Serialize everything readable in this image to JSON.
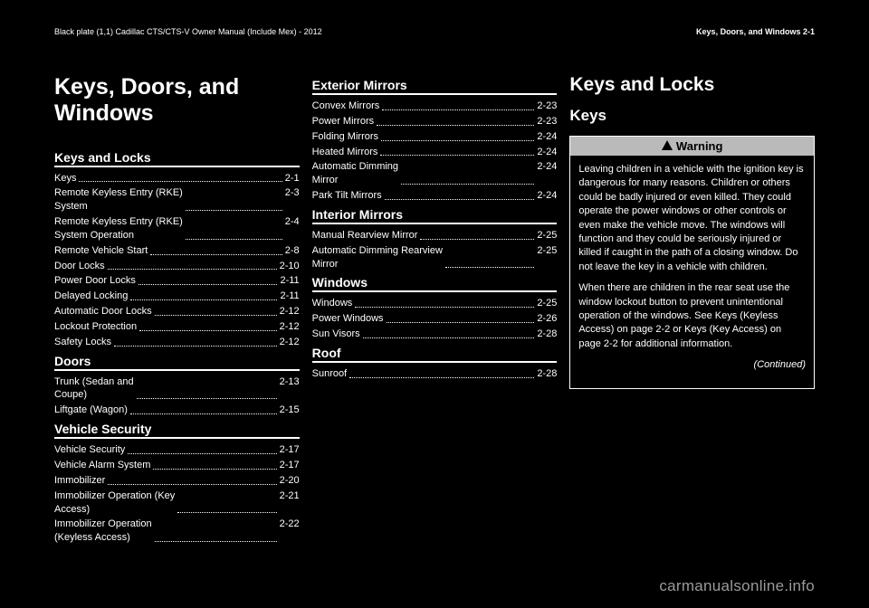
{
  "header": {
    "left": "Black plate (1,1) Cadillac CTS/CTS-V Owner Manual (Include Mex) - 2012",
    "right": "Keys, Doors, and Windows   2-1"
  },
  "col1": {
    "chapter_title": "Keys, Doors, and Windows",
    "sections": [
      {
        "title": "Keys and Locks",
        "items": [
          {
            "label": "Keys",
            "page": "2-1"
          },
          {
            "label": "Remote Keyless Entry (RKE) System",
            "page": "2-3"
          },
          {
            "label": "Remote Keyless Entry (RKE) System Operation",
            "page": "2-4"
          },
          {
            "label": "Remote Vehicle Start",
            "page": "2-8"
          },
          {
            "label": "Door Locks",
            "page": "2-10"
          },
          {
            "label": "Power Door Locks",
            "page": "2-11"
          },
          {
            "label": "Delayed Locking",
            "page": "2-11"
          },
          {
            "label": "Automatic Door Locks",
            "page": "2-12"
          },
          {
            "label": "Lockout Protection",
            "page": "2-12"
          },
          {
            "label": "Safety Locks",
            "page": "2-12"
          }
        ]
      },
      {
        "title": "Doors",
        "items": [
          {
            "label": "Trunk (Sedan and Coupe)",
            "page": "2-13"
          },
          {
            "label": "Liftgate (Wagon)",
            "page": "2-15"
          }
        ]
      },
      {
        "title": "Vehicle Security",
        "items": [
          {
            "label": "Vehicle Security",
            "page": "2-17"
          },
          {
            "label": "Vehicle Alarm System",
            "page": "2-17"
          },
          {
            "label": "Immobilizer",
            "page": "2-20"
          },
          {
            "label": "Immobilizer Operation (Key Access)",
            "page": "2-21"
          },
          {
            "label": "Immobilizer Operation (Keyless Access)",
            "page": "2-22"
          }
        ]
      }
    ]
  },
  "col2": {
    "sections": [
      {
        "title": "Exterior Mirrors",
        "items": [
          {
            "label": "Convex Mirrors",
            "page": "2-23"
          },
          {
            "label": "Power Mirrors",
            "page": "2-23"
          },
          {
            "label": "Folding Mirrors",
            "page": "2-24"
          },
          {
            "label": "Heated Mirrors",
            "page": "2-24"
          },
          {
            "label": "Automatic Dimming Mirror",
            "page": "2-24"
          },
          {
            "label": "Park Tilt Mirrors",
            "page": "2-24"
          }
        ]
      },
      {
        "title": "Interior Mirrors",
        "items": [
          {
            "label": "Manual Rearview Mirror",
            "page": "2-25"
          },
          {
            "label": "Automatic Dimming Rearview Mirror",
            "page": "2-25"
          }
        ]
      },
      {
        "title": "Windows",
        "items": [
          {
            "label": "Windows",
            "page": "2-25"
          },
          {
            "label": "Power Windows",
            "page": "2-26"
          },
          {
            "label": "Sun Visors",
            "page": "2-28"
          }
        ]
      },
      {
        "title": "Roof",
        "items": [
          {
            "label": "Sunroof",
            "page": "2-28"
          }
        ]
      }
    ]
  },
  "col3": {
    "h1": "Keys and Locks",
    "h2": "Keys",
    "warning": {
      "label": "Warning",
      "p1": "Leaving children in a vehicle with the ignition key is dangerous for many reasons. Children or others could be badly injured or even killed. They could operate the power windows or other controls or even make the vehicle move. The windows will function and they could be seriously injured or killed if caught in the path of a closing window. Do not leave the key in a vehicle with children.",
      "p2": "When there are children in the rear seat use the window lockout button to prevent unintentional operation of the windows. See Keys (Keyless Access) on page 2‑2 or Keys (Key Access) on page 2‑2 for additional information.",
      "continued": "(Continued)"
    }
  },
  "watermark": "carmanualsonline.info"
}
